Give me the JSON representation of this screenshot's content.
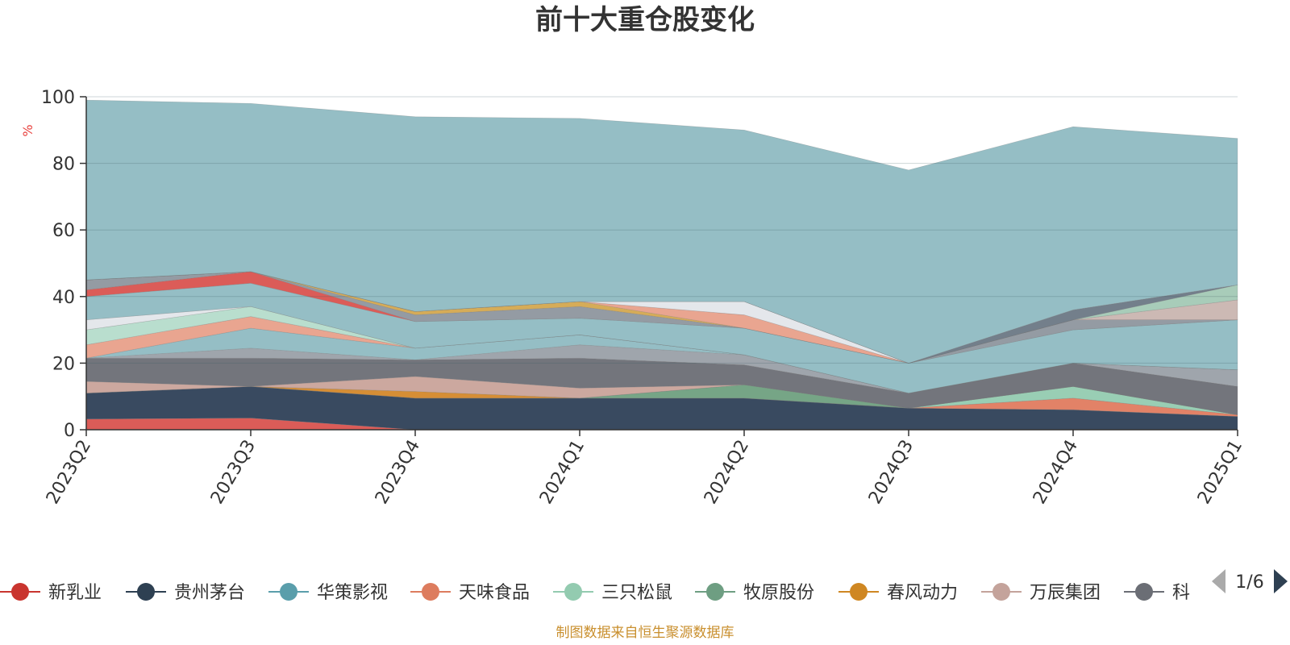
{
  "chart_data": {
    "type": "area",
    "title": "前十大重仓股变化",
    "ylabel": "%",
    "ylim": [
      0,
      100
    ],
    "yticks": [
      0,
      20,
      40,
      60,
      80,
      100
    ],
    "categories": [
      "2023Q2",
      "2023Q3",
      "2023Q4",
      "2024Q1",
      "2024Q2",
      "2024Q3",
      "2024Q4",
      "2025Q1"
    ],
    "stacked": true,
    "series": [
      {
        "name": "新乳业",
        "color": "#d9534f",
        "values": [
          3.2,
          3.5,
          0.0,
          0.0,
          0.0,
          0.0,
          0.0,
          0.0
        ]
      },
      {
        "name": "贵州茅台",
        "color": "#2e4057",
        "values": [
          7.8,
          9.5,
          9.5,
          9.5,
          9.5,
          6.5,
          6.0,
          4.0
        ]
      },
      {
        "name": "华策影视",
        "color": "#5fa3b0",
        "values": [
          0.0,
          0.0,
          0.0,
          0.0,
          0.0,
          0.0,
          0.0,
          0.0
        ]
      },
      {
        "name": "天味食品",
        "color": "#e07b5f",
        "values": [
          0.0,
          0.0,
          0.0,
          0.0,
          0.0,
          0.0,
          3.5,
          0.5
        ]
      },
      {
        "name": "三只松鼠",
        "color": "#93cbb0",
        "values": [
          0.0,
          0.0,
          0.0,
          0.0,
          0.0,
          0.0,
          3.5,
          0.0
        ]
      },
      {
        "name": "牧原股份",
        "color": "#6fa080",
        "values": [
          0.0,
          0.0,
          0.0,
          0.0,
          4.0,
          0.0,
          0.0,
          0.0
        ]
      },
      {
        "name": "春风动力",
        "color": "#d4882a",
        "values": [
          0.0,
          0.0,
          2.0,
          0.0,
          0.0,
          0.0,
          0.0,
          0.0
        ]
      },
      {
        "name": "万辰集团",
        "color": "#c9a39a",
        "values": [
          3.5,
          0.0,
          4.5,
          3.0,
          0.0,
          0.0,
          0.0,
          0.0
        ]
      },
      {
        "name": "科",
        "color": "#6b6e75",
        "values": [
          7.0,
          8.5,
          5.0,
          9.0,
          6.0,
          4.5,
          7.0,
          8.5
        ]
      },
      {
        "name": "",
        "color": "#9aa0a8",
        "values": [
          0.0,
          3.0,
          0.0,
          4.0,
          3.0,
          0.0,
          0.0,
          5.0
        ]
      },
      {
        "name": "",
        "color": "#8fbbc2",
        "values": [
          0.0,
          6.0,
          3.5,
          3.0,
          0.0,
          0.0,
          0.0,
          0.0
        ]
      },
      {
        "name": "",
        "color": "#e8a08a",
        "values": [
          4.0,
          3.5,
          0.0,
          0.0,
          0.0,
          0.0,
          0.0,
          0.0
        ]
      },
      {
        "name": "",
        "color": "#b5dccb",
        "values": [
          4.5,
          3.0,
          0.0,
          0.0,
          0.0,
          0.0,
          0.0,
          0.0
        ]
      },
      {
        "name": "",
        "color": "#e3e6ea",
        "values": [
          3.0,
          0.0,
          0.0,
          0.0,
          0.0,
          0.0,
          0.0,
          0.0
        ]
      },
      {
        "name": "",
        "color": "#8fbbc2",
        "values": [
          7.0,
          7.0,
          8.0,
          5.0,
          8.0,
          9.0,
          10.0,
          15.0
        ]
      },
      {
        "name": "",
        "color": "#d9534f",
        "values": [
          2.0,
          3.5,
          0.0,
          0.0,
          0.0,
          0.0,
          0.0,
          0.0
        ]
      },
      {
        "name": "",
        "color": "#8e969e",
        "values": [
          3.0,
          0.0,
          2.0,
          3.5,
          0.0,
          0.0,
          3.0,
          0.0
        ]
      },
      {
        "name": "",
        "color": "#d4a84f",
        "values": [
          0.0,
          0.0,
          1.0,
          1.5,
          0.0,
          0.0,
          0.0,
          0.0
        ]
      },
      {
        "name": "",
        "color": "#e8a08a",
        "values": [
          0.0,
          0.0,
          0.0,
          0.0,
          4.0,
          0.0,
          0.0,
          0.0
        ]
      },
      {
        "name": "",
        "color": "#e3e6ea",
        "values": [
          0.0,
          0.0,
          0.0,
          0.0,
          4.0,
          0.0,
          0.0,
          0.0
        ]
      },
      {
        "name": "",
        "color": "#c9b5b0",
        "values": [
          0.0,
          0.0,
          0.0,
          0.0,
          0.0,
          0.0,
          0.0,
          6.0
        ]
      },
      {
        "name": "",
        "color": "#a3c9b5",
        "values": [
          0.0,
          0.0,
          0.0,
          0.0,
          0.0,
          0.0,
          0.0,
          4.5
        ]
      },
      {
        "name": "",
        "color": "#6b7885",
        "values": [
          0.0,
          0.0,
          0.0,
          0.0,
          0.0,
          0.0,
          3.0,
          0.0
        ]
      },
      {
        "name": "",
        "color": "#8fbbc2",
        "values": [
          54.0,
          50.5,
          58.5,
          55.0,
          51.5,
          58.0,
          55.0,
          44.0
        ]
      }
    ]
  },
  "legend": {
    "items": [
      {
        "name": "新乳业",
        "color": "#c9352f"
      },
      {
        "name": "贵州茅台",
        "color": "#2e4052"
      },
      {
        "name": "华策影视",
        "color": "#5a9eab"
      },
      {
        "name": "天味食品",
        "color": "#dd7c5e"
      },
      {
        "name": "三只松鼠",
        "color": "#93cbb0"
      },
      {
        "name": "牧原股份",
        "color": "#6e9e82"
      },
      {
        "name": "春风动力",
        "color": "#cf8722"
      },
      {
        "name": "万辰集团",
        "color": "#c4a39b"
      },
      {
        "name": "科",
        "color": "#6b6e75"
      }
    ],
    "page_indicator": "1/6"
  },
  "source_note": "制图数据来自恒生聚源数据库"
}
